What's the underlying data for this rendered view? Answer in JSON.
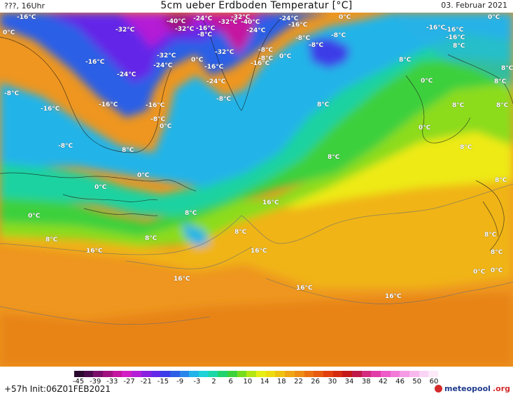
{
  "header": {
    "left": "???, 16Uhr",
    "title": "5cm ueber Erdboden Temperatur [°C]",
    "date": "03. Februar 2021"
  },
  "footer": {
    "run_info": "+57h  Init:06Z01FEB2021",
    "logo_main": "meteopool",
    "logo_tld": ".org"
  },
  "colorbar": {
    "ticks": [
      "-45",
      "-39",
      "-33",
      "-27",
      "-21",
      "-15",
      "-9",
      "-3",
      "2",
      "6",
      "10",
      "14",
      "18",
      "22",
      "26",
      "30",
      "34",
      "38",
      "42",
      "46",
      "50",
      "60"
    ],
    "colors": [
      "#2a0a2e",
      "#4a0b4a",
      "#7a0f6a",
      "#a0127f",
      "#c414a0",
      "#d21ec4",
      "#b41ed6",
      "#8a20e0",
      "#6428e8",
      "#3c3ce8",
      "#2c5ee6",
      "#2a86ea",
      "#22b4ea",
      "#1ed2d6",
      "#1cd8a8",
      "#22d46e",
      "#3ed23a",
      "#78dc1e",
      "#b4e614",
      "#e6ee14",
      "#eedc10",
      "#f0c210",
      "#f0a614",
      "#ee8c14",
      "#ec7010",
      "#e85a10",
      "#e2400e",
      "#d42a10",
      "#c41818",
      "#c01848",
      "#d42a80",
      "#e23ca8",
      "#ee5ac8",
      "#f27ad8",
      "#f59ae4",
      "#f8b8ee",
      "#fad4f4",
      "#fdeaf9"
    ],
    "unit": "°C"
  },
  "map_labels": [
    {
      "id": "a1",
      "text": "-16°C"
    },
    {
      "id": "a2",
      "text": "-32°C"
    },
    {
      "id": "a3",
      "text": "-40°C"
    },
    {
      "id": "a4",
      "text": "-24°C"
    },
    {
      "id": "a5",
      "text": "-32°C"
    },
    {
      "id": "a6",
      "text": "-32°C"
    },
    {
      "id": "a7",
      "text": "-24°C"
    },
    {
      "id": "a8",
      "text": "0°C"
    },
    {
      "id": "a9",
      "text": "0°C"
    },
    {
      "id": "a10",
      "text": "-32°C"
    },
    {
      "id": "a11",
      "text": "-16°C"
    },
    {
      "id": "a12",
      "text": "-40°C"
    },
    {
      "id": "a13",
      "text": "-16°C"
    },
    {
      "id": "a14",
      "text": "-24°C"
    },
    {
      "id": "a15",
      "text": "-16°C"
    },
    {
      "id": "a16",
      "text": "-8°C"
    },
    {
      "id": "a17",
      "text": "-8°C"
    },
    {
      "id": "a18",
      "text": "-16°C"
    },
    {
      "id": "a19",
      "text": "-8°C"
    },
    {
      "id": "a20",
      "text": "-8°C"
    },
    {
      "id": "a21",
      "text": "-32°C"
    },
    {
      "id": "a22",
      "text": "-24°C"
    },
    {
      "id": "a23",
      "text": "0°C"
    },
    {
      "id": "a24",
      "text": "-16°C"
    },
    {
      "id": "a25",
      "text": "-32°C"
    },
    {
      "id": "a26",
      "text": "-8°C"
    },
    {
      "id": "a27",
      "text": "0°C"
    },
    {
      "id": "a28",
      "text": "-16°C"
    },
    {
      "id": "a29",
      "text": "-24°C"
    },
    {
      "id": "a30",
      "text": "-16°C"
    },
    {
      "id": "a31",
      "text": "-24°C"
    },
    {
      "id": "a32",
      "text": "-16°C"
    },
    {
      "id": "a33",
      "text": "-8°C"
    },
    {
      "id": "a34",
      "text": "-16°C"
    },
    {
      "id": "a35",
      "text": "-16°C"
    },
    {
      "id": "a36",
      "text": "-8°C"
    },
    {
      "id": "a37",
      "text": "0°C"
    },
    {
      "id": "a38",
      "text": "-8°C"
    },
    {
      "id": "a39",
      "text": "-8°C"
    },
    {
      "id": "a40",
      "text": "8°C"
    },
    {
      "id": "a41",
      "text": "8°C"
    },
    {
      "id": "a42",
      "text": "0°C"
    },
    {
      "id": "a43",
      "text": "8°C"
    },
    {
      "id": "a44",
      "text": "8°C"
    },
    {
      "id": "a45",
      "text": "8°C"
    },
    {
      "id": "a46",
      "text": "8°C"
    },
    {
      "id": "a47",
      "text": "0°C"
    },
    {
      "id": "a48",
      "text": "8°C"
    },
    {
      "id": "a49",
      "text": "0°C"
    },
    {
      "id": "a50",
      "text": "0°C"
    },
    {
      "id": "a51",
      "text": "0°C"
    },
    {
      "id": "a52",
      "text": "8°C"
    },
    {
      "id": "a53",
      "text": "8°C"
    },
    {
      "id": "a54",
      "text": "8°C"
    },
    {
      "id": "a55",
      "text": "8°C"
    },
    {
      "id": "a56",
      "text": "16°C"
    },
    {
      "id": "a57",
      "text": "16°C"
    },
    {
      "id": "a58",
      "text": "16°C"
    },
    {
      "id": "a59",
      "text": "16°C"
    },
    {
      "id": "a60",
      "text": "16°C"
    },
    {
      "id": "a61",
      "text": "16°C"
    },
    {
      "id": "a62",
      "text": "0°C"
    },
    {
      "id": "a63",
      "text": "-16°C"
    },
    {
      "id": "a64",
      "text": "0°C"
    },
    {
      "id": "a65",
      "text": "-8°C"
    },
    {
      "id": "a66",
      "text": "8°C"
    },
    {
      "id": "a67",
      "text": "8°C"
    },
    {
      "id": "a68",
      "text": "8°C"
    },
    {
      "id": "a69",
      "text": "8°C"
    },
    {
      "id": "a70",
      "text": "8°C"
    },
    {
      "id": "a71",
      "text": "8°C"
    },
    {
      "id": "a72",
      "text": "0°C"
    }
  ]
}
